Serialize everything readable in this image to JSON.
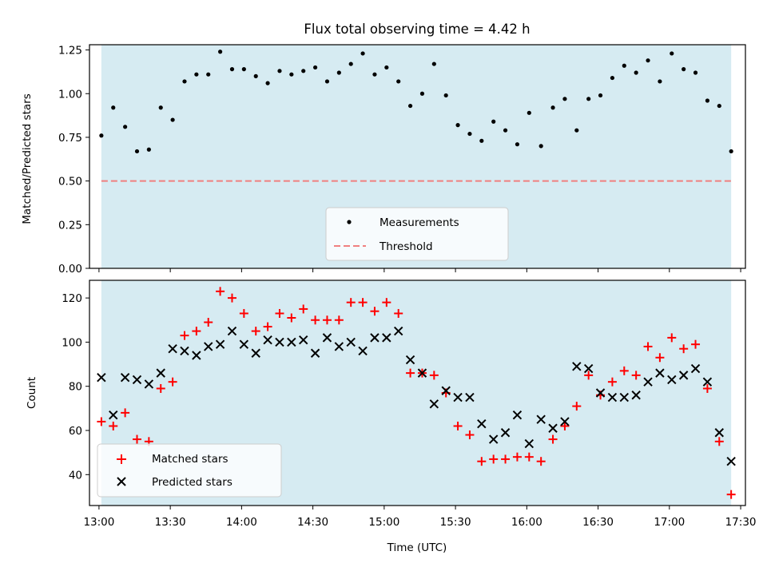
{
  "figure": {
    "title": "Flux total observing time = 4.42 h",
    "xlabel": "Time (UTC)"
  },
  "colors": {
    "shade": "#add8e6",
    "measure": "#000000",
    "threshold": "#f08080",
    "matched": "#ff0000",
    "predicted": "#000000"
  },
  "chart_data": [
    {
      "type": "scatter",
      "panel": "top",
      "ylabel": "Matched/Predicted stars",
      "x_axis": "time",
      "xlim": [
        "12:56",
        "17:32"
      ],
      "ylim": [
        0,
        1.28
      ],
      "yticks": [
        0.0,
        0.25,
        0.5,
        0.75,
        1.0,
        1.25
      ],
      "ytick_labels": [
        "0.00",
        "0.25",
        "0.50",
        "0.75",
        "1.00",
        "1.25"
      ],
      "shaded_span": [
        "13:01",
        "17:26"
      ],
      "threshold": {
        "value": 0.5,
        "style": "dashed"
      },
      "legend": {
        "position": "lower center",
        "entries": [
          "Measurements",
          "Threshold"
        ]
      },
      "series": [
        {
          "name": "Measurements",
          "marker": "dot",
          "x": [
            "13:01",
            "13:06",
            "13:11",
            "13:16",
            "13:21",
            "13:26",
            "13:31",
            "13:36",
            "13:41",
            "13:46",
            "13:51",
            "13:56",
            "14:01",
            "14:06",
            "14:11",
            "14:16",
            "14:21",
            "14:26",
            "14:31",
            "14:36",
            "14:41",
            "14:46",
            "14:51",
            "14:56",
            "15:01",
            "15:06",
            "15:11",
            "15:16",
            "15:21",
            "15:26",
            "15:31",
            "15:36",
            "15:41",
            "15:46",
            "15:51",
            "15:56",
            "16:01",
            "16:06",
            "16:11",
            "16:16",
            "16:21",
            "16:26",
            "16:31",
            "16:36",
            "16:41",
            "16:46",
            "16:51",
            "16:56",
            "17:01",
            "17:06",
            "17:11",
            "17:16",
            "17:21",
            "17:26"
          ],
          "y": [
            0.76,
            0.92,
            0.81,
            0.67,
            0.68,
            0.92,
            0.85,
            1.07,
            1.11,
            1.11,
            1.24,
            1.14,
            1.14,
            1.1,
            1.06,
            1.13,
            1.11,
            1.13,
            1.15,
            1.07,
            1.12,
            1.17,
            1.23,
            1.11,
            1.15,
            1.07,
            0.93,
            1.0,
            1.17,
            0.99,
            0.82,
            0.77,
            0.73,
            0.84,
            0.79,
            0.71,
            0.89,
            0.7,
            0.92,
            0.97,
            0.79,
            0.97,
            0.99,
            1.09,
            1.16,
            1.12,
            1.19,
            1.07,
            1.23,
            1.14,
            1.12,
            0.96,
            0.93,
            0.67
          ]
        }
      ]
    },
    {
      "type": "scatter",
      "panel": "bottom",
      "ylabel": "Count",
      "x_axis": "time",
      "xlim": [
        "12:56",
        "17:32"
      ],
      "ylim": [
        26,
        128
      ],
      "yticks": [
        40,
        60,
        80,
        100,
        120
      ],
      "ytick_labels": [
        "40",
        "60",
        "80",
        "100",
        "120"
      ],
      "xticks": [
        "13:00",
        "13:30",
        "14:00",
        "14:30",
        "15:00",
        "15:30",
        "16:00",
        "16:30",
        "17:00",
        "17:30"
      ],
      "shaded_span": [
        "13:01",
        "17:26"
      ],
      "legend": {
        "position": "lower left",
        "entries": [
          "Matched stars",
          "Predicted stars"
        ]
      },
      "series": [
        {
          "name": "Matched stars",
          "marker": "plus",
          "x": [
            "13:01",
            "13:06",
            "13:11",
            "13:16",
            "13:21",
            "13:26",
            "13:31",
            "13:36",
            "13:41",
            "13:46",
            "13:51",
            "13:56",
            "14:01",
            "14:06",
            "14:11",
            "14:16",
            "14:21",
            "14:26",
            "14:31",
            "14:36",
            "14:41",
            "14:46",
            "14:51",
            "14:56",
            "15:01",
            "15:06",
            "15:11",
            "15:16",
            "15:21",
            "15:26",
            "15:31",
            "15:36",
            "15:41",
            "15:46",
            "15:51",
            "15:56",
            "16:01",
            "16:06",
            "16:11",
            "16:16",
            "16:21",
            "16:26",
            "16:31",
            "16:36",
            "16:41",
            "16:46",
            "16:51",
            "16:56",
            "17:01",
            "17:06",
            "17:11",
            "17:16",
            "17:21",
            "17:26"
          ],
          "y": [
            64,
            62,
            68,
            56,
            55,
            79,
            82,
            103,
            105,
            109,
            123,
            120,
            113,
            105,
            107,
            113,
            111,
            115,
            110,
            110,
            110,
            118,
            118,
            114,
            118,
            113,
            86,
            86,
            85,
            77,
            62,
            58,
            46,
            47,
            47,
            48,
            48,
            46,
            56,
            62,
            71,
            85,
            76,
            82,
            87,
            85,
            98,
            93,
            102,
            97,
            99,
            79,
            55,
            31
          ]
        },
        {
          "name": "Predicted stars",
          "marker": "x",
          "x": [
            "13:01",
            "13:06",
            "13:11",
            "13:16",
            "13:21",
            "13:26",
            "13:31",
            "13:36",
            "13:41",
            "13:46",
            "13:51",
            "13:56",
            "14:01",
            "14:06",
            "14:11",
            "14:16",
            "14:21",
            "14:26",
            "14:31",
            "14:36",
            "14:41",
            "14:46",
            "14:51",
            "14:56",
            "15:01",
            "15:06",
            "15:11",
            "15:16",
            "15:21",
            "15:26",
            "15:31",
            "15:36",
            "15:41",
            "15:46",
            "15:51",
            "15:56",
            "16:01",
            "16:06",
            "16:11",
            "16:16",
            "16:21",
            "16:26",
            "16:31",
            "16:36",
            "16:41",
            "16:46",
            "16:51",
            "16:56",
            "17:01",
            "17:06",
            "17:11",
            "17:16",
            "17:21",
            "17:26"
          ],
          "y": [
            84,
            67,
            84,
            83,
            81,
            86,
            97,
            96,
            94,
            98,
            99,
            105,
            99,
            95,
            101,
            100,
            100,
            101,
            95,
            102,
            98,
            100,
            96,
            102,
            102,
            105,
            92,
            86,
            72,
            78,
            75,
            75,
            63,
            56,
            59,
            67,
            54,
            65,
            61,
            64,
            89,
            88,
            77,
            75,
            75,
            76,
            82,
            86,
            83,
            85,
            88,
            82,
            59,
            46
          ]
        }
      ]
    }
  ]
}
